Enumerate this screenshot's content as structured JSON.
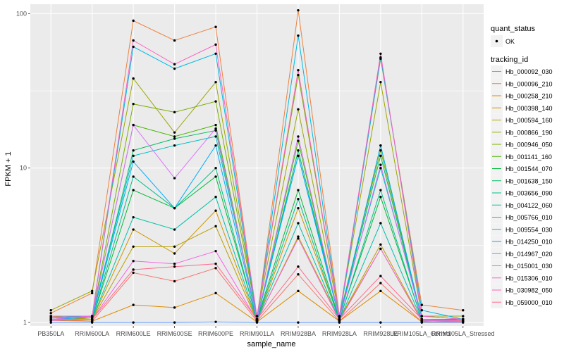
{
  "chart_data": {
    "type": "line",
    "xlabel": "sample_name",
    "ylabel": "FPKM + 1",
    "y_scale": "log10",
    "ylim": [
      0.95,
      115
    ],
    "y_ticks": [
      {
        "value": 1,
        "label": "1"
      },
      {
        "value": 10,
        "label": "10"
      },
      {
        "value": 100,
        "label": "100"
      }
    ],
    "categories": [
      "PB350LA",
      "RRIM600LA",
      "RRIM600LE",
      "RRIM600SE",
      "RRIM600PE",
      "RRIM901LA",
      "RRIM928BA",
      "RRIM928LA",
      "RRIM928LE",
      "RRIM105LA_Control",
      "RRIM105LA_Stressed"
    ],
    "legend_status": {
      "title": "quant_status",
      "entries": [
        {
          "label": "OK"
        }
      ]
    },
    "legend_series_title": "tracking_id",
    "panel_background": "#ebebeb",
    "grid": true,
    "series": [
      {
        "name": "Hb_000092_030",
        "color": "#F8766D",
        "values": [
          1.05,
          1.02,
          2.1,
          1.85,
          2.25,
          1.02,
          2.05,
          1.02,
          1.8,
          1.01,
          1.01
        ]
      },
      {
        "name": "Hb_000096_210",
        "color": "#ED813E",
        "values": [
          1.15,
          1.55,
          90,
          67,
          82,
          1.05,
          105,
          1.1,
          51,
          1.3,
          1.2
        ]
      },
      {
        "name": "Hb_000258_210",
        "color": "#DE8C00",
        "values": [
          1.03,
          1.02,
          1.3,
          1.25,
          1.55,
          1.01,
          1.6,
          1.02,
          1.6,
          1.01,
          1.02
        ]
      },
      {
        "name": "Hb_000398_140",
        "color": "#CD9600",
        "values": [
          1.08,
          1.05,
          4.0,
          2.8,
          5.3,
          1.02,
          5.5,
          1.05,
          3.0,
          1.02,
          1.05
        ]
      },
      {
        "name": "Hb_000594_160",
        "color": "#B79F00",
        "values": [
          1.1,
          1.05,
          3.1,
          3.1,
          4.2,
          1.02,
          3.6,
          1.05,
          3.2,
          1.03,
          1.03
        ]
      },
      {
        "name": "Hb_000866_190",
        "color": "#9DA700",
        "values": [
          1.2,
          1.6,
          38,
          17,
          36,
          1.1,
          24,
          1.1,
          36,
          1.1,
          1.1
        ]
      },
      {
        "name": "Hb_000946_050",
        "color": "#7CAE00",
        "values": [
          1.1,
          1.1,
          26,
          23,
          27,
          1.1,
          40,
          1.1,
          13,
          1.05,
          1.05
        ]
      },
      {
        "name": "Hb_001141_160",
        "color": "#49B500",
        "values": [
          1.05,
          1.1,
          19,
          16,
          19,
          1.05,
          15,
          1.05,
          14,
          1.05,
          1.03
        ]
      },
      {
        "name": "Hb_001544_070",
        "color": "#00BA38",
        "values": [
          1.05,
          1.05,
          7.2,
          5.5,
          8.8,
          1.05,
          7.2,
          1.05,
          6.5,
          1.05,
          1.03
        ]
      },
      {
        "name": "Hb_001638_150",
        "color": "#00BE67",
        "values": [
          1.05,
          1.08,
          13,
          15.5,
          17.5,
          1.05,
          13,
          1.08,
          12,
          1.05,
          1.05
        ]
      },
      {
        "name": "Hb_003656_090",
        "color": "#00C08B",
        "values": [
          1.03,
          1.05,
          8.8,
          5.5,
          10,
          1.03,
          6.3,
          1.03,
          7.2,
          1.03,
          1.03
        ]
      },
      {
        "name": "Hb_004122_060",
        "color": "#00C1A9",
        "values": [
          1.05,
          1.05,
          4.8,
          4.0,
          6.5,
          1.03,
          4.4,
          1.03,
          4.4,
          1.03,
          1.03
        ]
      },
      {
        "name": "Hb_005766_010",
        "color": "#00BFC4",
        "values": [
          1.1,
          1.1,
          12,
          14,
          16,
          1.1,
          12,
          1.1,
          10,
          1.1,
          1.05
        ]
      },
      {
        "name": "Hb_009554_030",
        "color": "#00B9E3",
        "values": [
          1.08,
          1.1,
          61,
          44,
          55,
          1.05,
          72,
          1.05,
          52,
          1.2,
          1.05
        ]
      },
      {
        "name": "Hb_014250_010",
        "color": "#00ADFA",
        "values": [
          1.05,
          1.08,
          11,
          5.5,
          14,
          1.05,
          12,
          1.05,
          14,
          1.05,
          1.03
        ]
      },
      {
        "name": "Hb_014967_020",
        "color": "#619CFF",
        "values": [
          1.0,
          1.0,
          1.0,
          1.0,
          1.01,
          1.0,
          1.0,
          1.0,
          1.0,
          1.0,
          1.0
        ]
      },
      {
        "name": "Hb_015001_030",
        "color": "#DB72FB",
        "values": [
          1.05,
          1.1,
          19,
          8.6,
          18,
          1.05,
          16,
          1.05,
          10.5,
          1.05,
          1.03
        ]
      },
      {
        "name": "Hb_015306_010",
        "color": "#F564E3",
        "values": [
          1.03,
          1.05,
          2.5,
          2.4,
          2.9,
          1.03,
          3.5,
          1.03,
          3.0,
          1.03,
          1.02
        ]
      },
      {
        "name": "Hb_030982_050",
        "color": "#FF61C3",
        "values": [
          1.1,
          1.1,
          67,
          47,
          63,
          1.1,
          43,
          1.1,
          55,
          1.1,
          1.05
        ]
      },
      {
        "name": "Hb_059000_010",
        "color": "#FF6C91",
        "values": [
          1.05,
          1.05,
          2.2,
          2.3,
          2.4,
          1.05,
          2.3,
          1.05,
          2.0,
          1.05,
          1.03
        ]
      }
    ]
  }
}
